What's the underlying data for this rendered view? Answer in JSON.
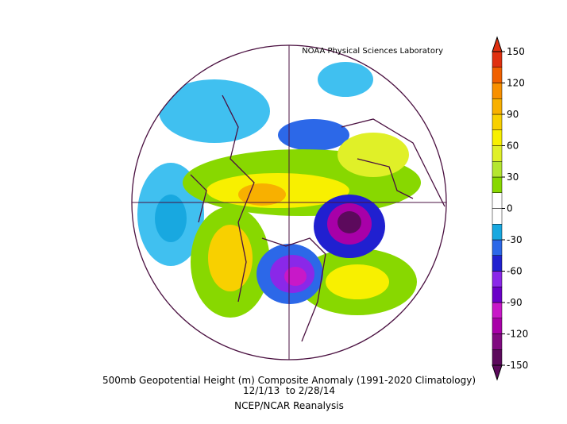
{
  "credit": "NOAA Physical Sciences Laboratory",
  "caption": {
    "title": "500mb Geopotential Height (m) Composite Anomaly (1991-2020 Climatology)",
    "dates": "12/1/13  to 2/28/14",
    "source": "NCEP/NCAR Reanalysis"
  },
  "colorbar": {
    "lim": [
      -150,
      150
    ],
    "ticks": [
      150,
      120,
      90,
      60,
      30,
      0,
      -30,
      -60,
      -90,
      -120,
      -150
    ],
    "colors": [
      "#5c0a5c",
      "#800a80",
      "#a800a8",
      "#c818c8",
      "#6a00c8",
      "#8a28e8",
      "#2020d0",
      "#2c68e8",
      "#18a8e0",
      "#ffffff",
      "#ffffff",
      "#88d800",
      "#b4e630",
      "#e0f028",
      "#f8f000",
      "#f8d000",
      "#f8b000",
      "#f89000",
      "#f06000",
      "#e03010"
    ]
  }
}
